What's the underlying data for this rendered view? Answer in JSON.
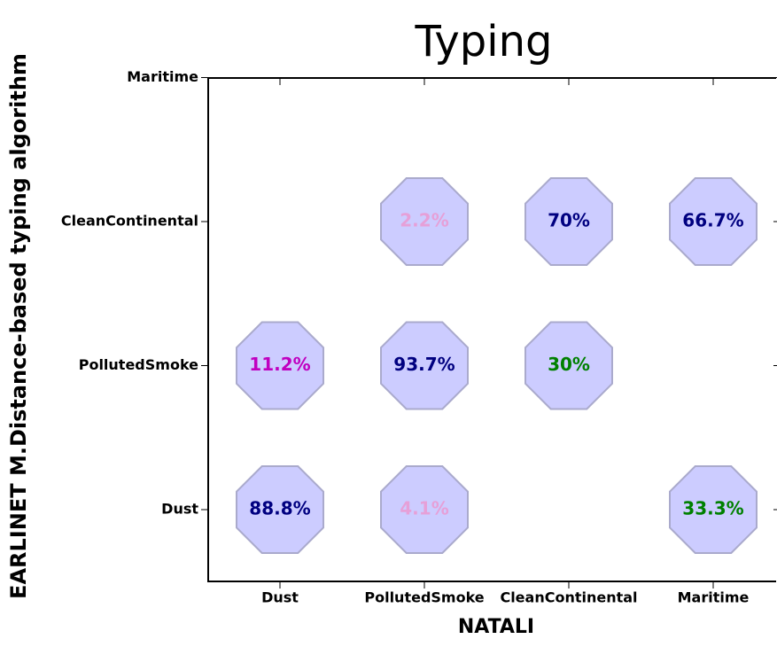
{
  "chart_data": {
    "type": "matrix",
    "title": "Typing",
    "x_label": "NATALI",
    "y_label": "EARLINET M.Distance-based typing algorithm",
    "x_categories": [
      "Dust",
      "PollutedSmoke",
      "CleanContinental",
      "Maritime"
    ],
    "y_categories": [
      "Dust",
      "PollutedSmoke",
      "CleanContinental",
      "Maritime"
    ],
    "values": [
      [
        88.8,
        4.1,
        null,
        33.3
      ],
      [
        11.2,
        93.7,
        30,
        null
      ],
      [
        null,
        2.2,
        70,
        66.7
      ],
      [
        null,
        null,
        null,
        null
      ]
    ],
    "value_labels": [
      [
        "88.8%",
        "4.1%",
        null,
        "33.3%"
      ],
      [
        "11.2%",
        "93.7%",
        "30%",
        null
      ],
      [
        null,
        "2.2%",
        "70%",
        "66.7%"
      ],
      [
        null,
        null,
        null,
        null
      ]
    ],
    "label_colors": [
      [
        "#000080",
        "#e6a0d8",
        null,
        "#008000"
      ],
      [
        "#c000c0",
        "#000080",
        "#008000",
        null
      ],
      [
        null,
        "#e6a0d8",
        "#000080",
        "#000080"
      ],
      [
        null,
        null,
        null,
        null
      ]
    ],
    "marker_color": "#ccccff",
    "marker_edge_color": "#aaaacc"
  }
}
